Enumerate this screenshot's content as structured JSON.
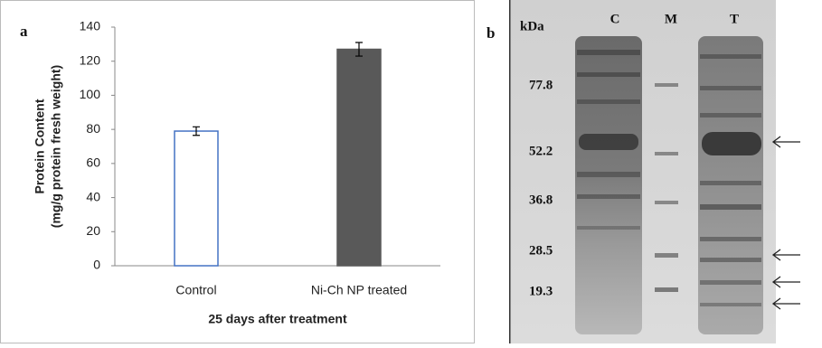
{
  "chart_data": {
    "type": "bar",
    "panel_label": "a",
    "ylabel": [
      "Protein Content",
      "(mg/g protein fresh weight)"
    ],
    "xlabel": "25 days after treatment",
    "categories": [
      "Control",
      "Ni-Ch NP treated"
    ],
    "values": [
      79,
      127
    ],
    "errors": [
      2.5,
      4
    ],
    "colors": [
      "#ffffff",
      "#595959"
    ],
    "edgecolors": [
      "#4472c4",
      "#595959"
    ],
    "ylim": [
      0,
      140
    ],
    "yticks": [
      0,
      20,
      40,
      60,
      80,
      100,
      120,
      140
    ],
    "grid": false
  },
  "gel": {
    "panel_label": "b",
    "unit": "kDa",
    "lanes": [
      "C",
      "M",
      "T"
    ],
    "markers": [
      77.8,
      52.2,
      36.8,
      28.5,
      19.3
    ]
  }
}
